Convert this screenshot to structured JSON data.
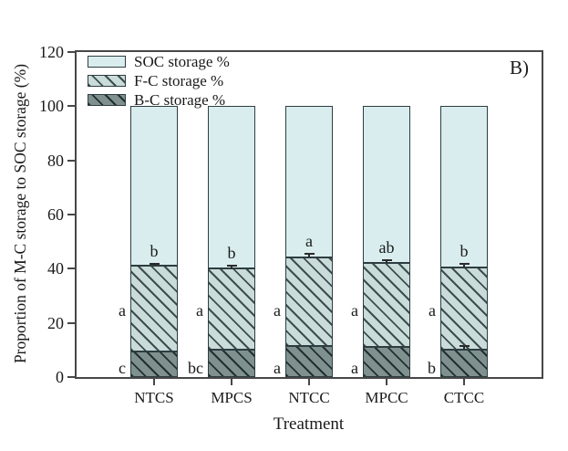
{
  "figure_label": "B)",
  "chart_data": {
    "type": "bar",
    "stacked": true,
    "title": "",
    "xlabel": "Treatment",
    "ylabel": "Proportion of M-C storage to SOC storage (%)",
    "ylim": [
      0,
      120
    ],
    "yticks": [
      0,
      20,
      40,
      60,
      80,
      100,
      120
    ],
    "grid": false,
    "legend_position": "upper-left",
    "bar_total": 100,
    "categories": [
      "NTCS",
      "MPCS",
      "NTCC",
      "MPCC",
      "CTCC"
    ],
    "series": [
      {
        "name": "B-C storage %",
        "values": [
          9.6,
          10.1,
          11.5,
          11.2,
          10.0
        ],
        "letters": [
          "c",
          "bc",
          "a",
          "a",
          "b"
        ]
      },
      {
        "name": "F-C storage %",
        "values": [
          31.4,
          30.1,
          32.7,
          30.8,
          30.5
        ],
        "letters": [
          "a",
          "a",
          "a",
          "a",
          "a"
        ]
      },
      {
        "name": "SOC storage %",
        "values": [
          59.0,
          59.8,
          55.8,
          58.0,
          59.5
        ]
      }
    ],
    "m_c_top": [
      41.0,
      40.2,
      44.2,
      42.0,
      40.5
    ],
    "m_c_top_errors": [
      0.9,
      0.8,
      1.2,
      1.0,
      1.2
    ],
    "m_c_top_letters": [
      "b",
      "b",
      "a",
      "ab",
      "b"
    ],
    "b_c_errors": [
      0,
      0,
      0,
      0,
      1.3
    ],
    "legend": [
      "SOC storage %",
      "F-C storage %",
      "B-C storage %"
    ]
  },
  "colors": {
    "soc_fill": "#d9edee",
    "fc_fill": "#c9dcda",
    "fc_hatch": "#3d4d4f",
    "bc_fill": "#7f918f",
    "bc_hatch": "#222f33",
    "bar_border": "#2e3d40",
    "axis": "#474747",
    "text": "#1a1a1a"
  }
}
